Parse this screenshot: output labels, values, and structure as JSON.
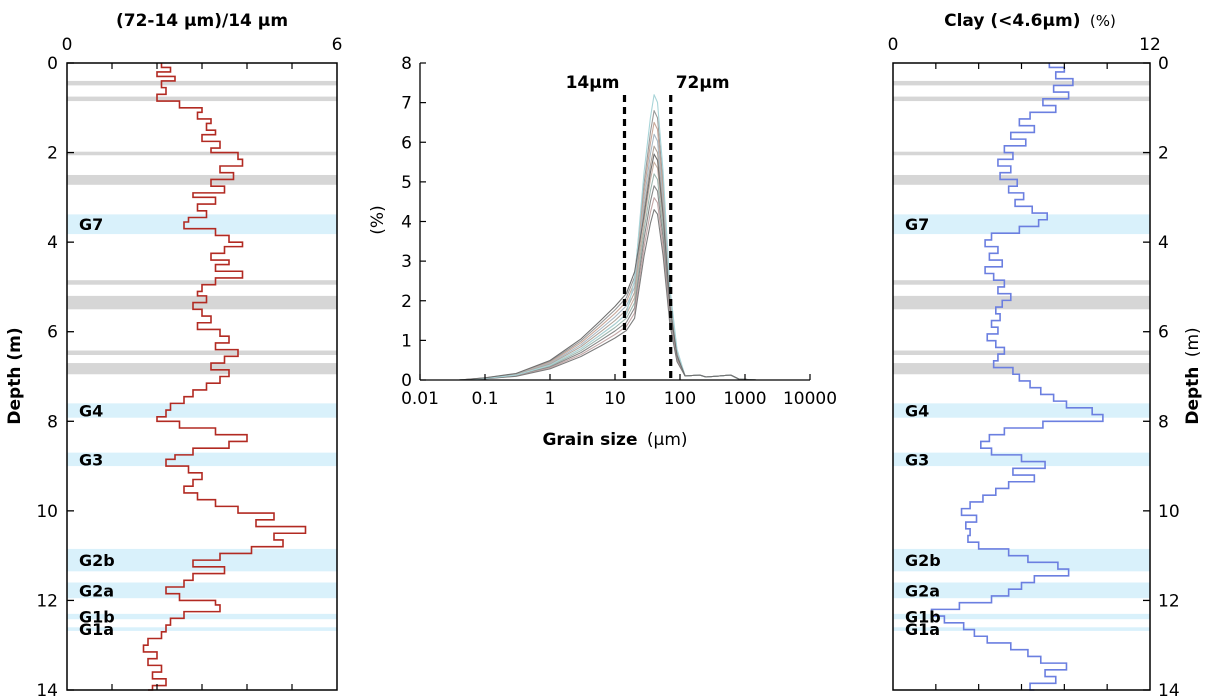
{
  "chart_data": [
    {
      "type": "line",
      "title": "(72-14 µm)/14 µm",
      "xlim": [
        0,
        6
      ],
      "x_ticks": [
        "0",
        "6"
      ],
      "ylim": [
        14,
        0
      ],
      "y_ticks": [
        "0",
        "2",
        "4",
        "6",
        "8",
        "10",
        "12",
        "14"
      ],
      "ylabel": "Depth (m)",
      "color": "#b22a22",
      "series": [
        {
          "depth": [
            0.0,
            0.1,
            0.2,
            0.3,
            0.4,
            0.55,
            0.7,
            0.85,
            1.0,
            1.1,
            1.25,
            1.35,
            1.5,
            1.6,
            1.75,
            1.9,
            2.0,
            2.15,
            2.3,
            2.45,
            2.6,
            2.75,
            2.9,
            3.0,
            3.15,
            3.3,
            3.45,
            3.55,
            3.7,
            3.85,
            4.0,
            4.1,
            4.25,
            4.4,
            4.5,
            4.65,
            4.8,
            4.95,
            5.1,
            5.2,
            5.35,
            5.5,
            5.65,
            5.8,
            5.95,
            6.1,
            6.25,
            6.4,
            6.55,
            6.7,
            6.85,
            7.0,
            7.15,
            7.3,
            7.45,
            7.6,
            7.75,
            7.9,
            8.0,
            8.15,
            8.3,
            8.45,
            8.6,
            8.75,
            8.85,
            9.0,
            9.15,
            9.3,
            9.45,
            9.6,
            9.75,
            9.9,
            10.05,
            10.2,
            10.35,
            10.5,
            10.65,
            10.8,
            10.95,
            11.1,
            11.25,
            11.4,
            11.55,
            11.7,
            11.85,
            12.0,
            12.1,
            12.25,
            12.4,
            12.55,
            12.7,
            12.85,
            13.0,
            13.15,
            13.3,
            13.45,
            13.6,
            13.75,
            13.9,
            14.0
          ],
          "value": [
            2.1,
            2.3,
            2.0,
            2.4,
            2.1,
            2.2,
            2.0,
            2.5,
            3.0,
            2.9,
            3.2,
            3.1,
            3.3,
            3.0,
            3.4,
            3.2,
            3.8,
            3.9,
            3.4,
            3.7,
            3.2,
            3.5,
            2.8,
            3.3,
            2.9,
            3.1,
            2.7,
            2.6,
            3.3,
            3.6,
            3.9,
            3.5,
            3.2,
            3.6,
            3.3,
            3.9,
            3.3,
            3.0,
            2.9,
            3.1,
            2.8,
            3.0,
            3.2,
            2.9,
            3.4,
            3.6,
            3.3,
            3.8,
            3.5,
            3.2,
            3.6,
            3.4,
            3.1,
            2.8,
            2.6,
            2.3,
            2.2,
            2.0,
            2.5,
            3.3,
            4.0,
            3.6,
            2.8,
            2.4,
            2.2,
            2.7,
            3.0,
            2.8,
            2.6,
            2.9,
            3.3,
            3.8,
            4.6,
            4.2,
            5.3,
            4.6,
            4.8,
            4.1,
            3.4,
            2.8,
            3.5,
            2.8,
            2.6,
            2.2,
            2.5,
            3.3,
            3.4,
            2.6,
            2.3,
            2.2,
            2.1,
            1.8,
            1.7,
            2.0,
            1.8,
            2.1,
            1.9,
            2.2,
            1.9,
            1.8
          ]
        }
      ]
    },
    {
      "type": "line",
      "xlabel": "Grain size",
      "xlabel_unit": "(µm)",
      "ylabel": "(%)",
      "x_scale": "log",
      "xlim": [
        0.01,
        10000
      ],
      "x_ticks": [
        "0.01",
        "0.1",
        "1",
        "10",
        "100",
        "1000",
        "10000"
      ],
      "ylim": [
        0,
        8
      ],
      "y_ticks": [
        "0",
        "1",
        "2",
        "3",
        "4",
        "5",
        "6",
        "7",
        "8"
      ],
      "reference_lines": [
        {
          "x": 14,
          "label": "14µm"
        },
        {
          "x": 72,
          "label": "72µm"
        }
      ],
      "series": [
        {
          "x": [
            0.04,
            0.1,
            0.3,
            1,
            3,
            6,
            10,
            15,
            20,
            28,
            35,
            40,
            45,
            55,
            70,
            90,
            120,
            200,
            250,
            400,
            600,
            800,
            1500
          ],
          "variants": [
            {
              "peak": 6.8,
              "fine": 1.0,
              "color": "#9a9a9a"
            },
            {
              "peak": 6.5,
              "fine": 0.95,
              "color": "#c8a89a"
            },
            {
              "peak": 6.2,
              "fine": 0.9,
              "color": "#a9b9c4"
            },
            {
              "peak": 5.9,
              "fine": 0.85,
              "color": "#b0a49a"
            },
            {
              "peak": 5.5,
              "fine": 0.8,
              "color": "#c7b0a3"
            },
            {
              "peak": 5.2,
              "fine": 0.75,
              "color": "#9fb8b0"
            },
            {
              "peak": 4.9,
              "fine": 0.7,
              "color": "#888888"
            },
            {
              "peak": 4.6,
              "fine": 0.65,
              "color": "#c3a7a7"
            },
            {
              "peak": 4.3,
              "fine": 0.6,
              "color": "#7d7d7d"
            },
            {
              "peak": 7.2,
              "fine": 0.8,
              "color": "#a8d4d8"
            },
            {
              "peak": 5.7,
              "fine": 1.05,
              "color": "#6f6f6f"
            }
          ]
        }
      ]
    },
    {
      "type": "line",
      "title": "Clay (<4.6µm)",
      "title_unit": "(%)",
      "xlim": [
        0,
        12
      ],
      "x_ticks": [
        "0",
        "12"
      ],
      "ylim": [
        14,
        0
      ],
      "y_ticks": [
        "0",
        "2",
        "4",
        "6",
        "8",
        "10",
        "12",
        "14"
      ],
      "ylabel": "Depth",
      "ylabel_unit": "(m)",
      "color": "#6b7fe0",
      "series": [
        {
          "depth": [
            0.0,
            0.1,
            0.2,
            0.35,
            0.5,
            0.65,
            0.8,
            0.95,
            1.1,
            1.25,
            1.4,
            1.55,
            1.7,
            1.85,
            2.0,
            2.15,
            2.3,
            2.45,
            2.6,
            2.75,
            2.9,
            3.05,
            3.2,
            3.35,
            3.5,
            3.65,
            3.8,
            3.95,
            4.1,
            4.25,
            4.4,
            4.55,
            4.7,
            4.85,
            5.0,
            5.15,
            5.3,
            5.45,
            5.6,
            5.75,
            5.9,
            6.05,
            6.2,
            6.35,
            6.5,
            6.65,
            6.8,
            6.95,
            7.1,
            7.25,
            7.4,
            7.55,
            7.7,
            7.85,
            8.0,
            8.15,
            8.3,
            8.45,
            8.6,
            8.75,
            8.9,
            9.05,
            9.2,
            9.35,
            9.5,
            9.65,
            9.8,
            9.95,
            10.1,
            10.25,
            10.4,
            10.55,
            10.7,
            10.85,
            11.0,
            11.15,
            11.3,
            11.45,
            11.6,
            11.75,
            11.9,
            12.05,
            12.2,
            12.35,
            12.5,
            12.65,
            12.8,
            12.95,
            13.1,
            13.25,
            13.4,
            13.55,
            13.7,
            13.85,
            14.0
          ],
          "value": [
            7.3,
            8.0,
            7.6,
            8.4,
            7.5,
            8.2,
            7.0,
            7.6,
            6.4,
            5.9,
            6.6,
            5.5,
            6.2,
            5.2,
            5.6,
            4.9,
            5.5,
            5.0,
            5.8,
            5.4,
            6.1,
            5.7,
            6.5,
            7.2,
            6.8,
            5.9,
            4.6,
            4.3,
            4.9,
            4.5,
            5.1,
            4.3,
            4.7,
            5.2,
            4.9,
            5.5,
            5.1,
            4.8,
            5.0,
            4.6,
            4.9,
            4.4,
            4.8,
            5.2,
            4.9,
            4.7,
            5.6,
            5.9,
            6.4,
            6.9,
            7.5,
            8.1,
            9.3,
            9.8,
            7.0,
            5.2,
            4.5,
            4.1,
            4.6,
            6.0,
            7.1,
            5.6,
            6.6,
            5.4,
            4.8,
            4.2,
            3.6,
            3.2,
            3.9,
            3.4,
            3.6,
            3.5,
            4.0,
            5.4,
            6.3,
            7.7,
            8.2,
            6.6,
            6.0,
            5.4,
            4.6,
            3.1,
            1.8,
            2.4,
            3.3,
            3.8,
            4.4,
            5.5,
            6.3,
            6.9,
            8.1,
            7.1,
            7.6,
            6.4,
            6.6
          ]
        }
      ]
    }
  ],
  "bands": [
    {
      "from": 0.4,
      "to": 0.5,
      "kind": "gray",
      "label": ""
    },
    {
      "from": 0.75,
      "to": 0.85,
      "kind": "gray",
      "label": ""
    },
    {
      "from": 1.98,
      "to": 2.06,
      "kind": "gray",
      "label": ""
    },
    {
      "from": 2.5,
      "to": 2.72,
      "kind": "gray",
      "label": ""
    },
    {
      "from": 3.38,
      "to": 3.82,
      "kind": "blue",
      "label": "G7"
    },
    {
      "from": 4.85,
      "to": 4.95,
      "kind": "gray",
      "label": ""
    },
    {
      "from": 5.2,
      "to": 5.5,
      "kind": "gray",
      "label": ""
    },
    {
      "from": 6.42,
      "to": 6.52,
      "kind": "gray",
      "label": ""
    },
    {
      "from": 6.7,
      "to": 6.95,
      "kind": "gray",
      "label": ""
    },
    {
      "from": 7.6,
      "to": 7.92,
      "kind": "blue",
      "label": "G4"
    },
    {
      "from": 8.7,
      "to": 9.0,
      "kind": "blue",
      "label": "G3"
    },
    {
      "from": 10.85,
      "to": 11.35,
      "kind": "blue",
      "label": "G2b"
    },
    {
      "from": 11.6,
      "to": 11.95,
      "kind": "blue",
      "label": "G2a"
    },
    {
      "from": 12.3,
      "to": 12.42,
      "kind": "blue",
      "label": "G1b"
    },
    {
      "from": 12.6,
      "to": 12.68,
      "kind": "blue",
      "label": "G1a"
    }
  ],
  "colors": {
    "blue_band": "#d9f1fb",
    "gray_band": "#d6d6d6",
    "axis": "#000000"
  }
}
